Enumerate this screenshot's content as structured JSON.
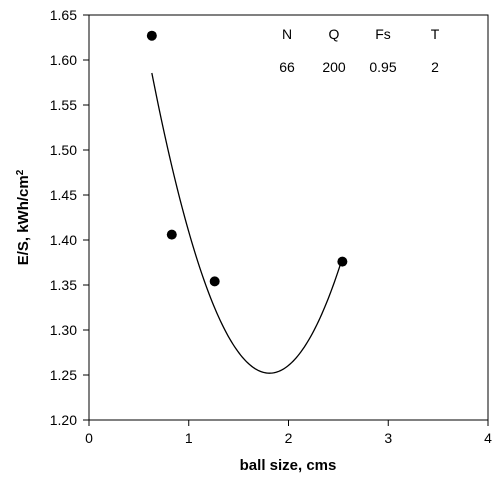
{
  "chart_data": {
    "type": "scatter",
    "title": "",
    "xlabel": "ball size, cms",
    "ylabel": "E/S, kWh/cm",
    "ylabel_superscript": "2",
    "xlim": [
      0,
      4
    ],
    "ylim": [
      1.2,
      1.65
    ],
    "x_ticks": [
      0,
      1,
      2,
      3,
      4
    ],
    "x_tick_labels": [
      "0",
      "1",
      "2",
      "3",
      "4"
    ],
    "y_ticks": [
      1.2,
      1.25,
      1.3,
      1.35,
      1.4,
      1.45,
      1.5,
      1.55,
      1.6,
      1.65
    ],
    "y_tick_labels": [
      "1.20",
      "1.25",
      "1.30",
      "1.35",
      "1.40",
      "1.45",
      "1.50",
      "1.55",
      "1.60",
      "1.65"
    ],
    "grid": false,
    "legend": "none",
    "points": [
      {
        "x": 0.63,
        "y": 1.627
      },
      {
        "x": 0.83,
        "y": 1.406
      },
      {
        "x": 1.26,
        "y": 1.354
      },
      {
        "x": 2.54,
        "y": 1.376
      }
    ],
    "fit_curve": {
      "type": "quadratic",
      "x_range": [
        0.63,
        2.54
      ],
      "vertex_x": 1.81,
      "vertex_y": 1.252,
      "curvature": 0.2396
    },
    "annotation_table": {
      "headers": [
        "N",
        "Q",
        "Fs",
        "T"
      ],
      "values": [
        "66",
        "200",
        "0.95",
        "2"
      ]
    },
    "colors": {
      "marker": "#000000",
      "line": "#000000",
      "axis": "#000000"
    }
  }
}
